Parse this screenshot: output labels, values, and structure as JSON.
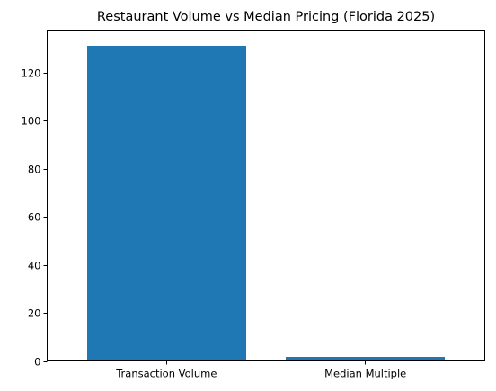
{
  "chart_data": {
    "type": "bar",
    "title": "Restaurant Volume vs Median Pricing (Florida 2025)",
    "xlabel": "",
    "ylabel": "",
    "categories": [
      "Transaction Volume",
      "Median Multiple"
    ],
    "values": [
      131,
      1.7
    ],
    "ylim": [
      0,
      137.6
    ],
    "yticks": [
      0,
      20,
      40,
      60,
      80,
      100,
      120
    ],
    "bar_color": "#1f77b4",
    "grid": false,
    "legend": "none"
  }
}
